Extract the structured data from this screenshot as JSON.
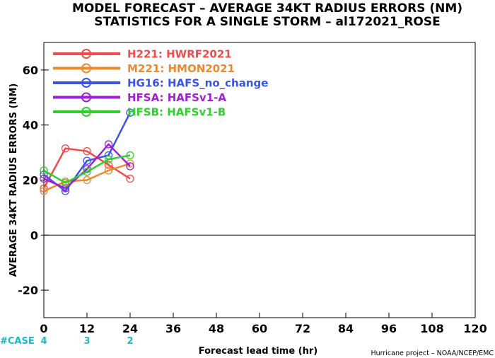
{
  "chart_data": {
    "type": "line",
    "title": "MODEL FORECAST – AVERAGE 34KT RADIUS ERRORS (NM)",
    "subtitle": "STATISTICS FOR A SINGLE STORM – al172021_ROSE",
    "xlabel": "Forecast lead time (hr)",
    "ylabel": "AVERAGE 34KT RADIUS ERRORS (NM)",
    "xlim": [
      0,
      120
    ],
    "ylim": [
      -30,
      70
    ],
    "xticks": [
      0,
      12,
      24,
      36,
      48,
      60,
      72,
      84,
      96,
      108,
      120
    ],
    "yticks": [
      -20,
      0,
      20,
      40,
      60
    ],
    "x": [
      0,
      6,
      12,
      18,
      24
    ],
    "legend_position": "top-left",
    "series": [
      {
        "name": "H221: HWRF2021",
        "color": "#f04a4a",
        "values": [
          17,
          31.5,
          30.5,
          25.5,
          20.5
        ]
      },
      {
        "name": "M221: HMON2021",
        "color": "#f0882a",
        "values": [
          16,
          19.5,
          20,
          23.5,
          26
        ]
      },
      {
        "name": "HG16: HAFS_no_change",
        "color": "#3a55e6",
        "values": [
          22,
          16,
          27,
          29,
          44.5
        ]
      },
      {
        "name": "HFSA: HAFSv1-A",
        "color": "#a022cf",
        "values": [
          20.5,
          17,
          24,
          33,
          25
        ]
      },
      {
        "name": "HFSB: HAFSv1-B",
        "color": "#2ed02a",
        "values": [
          23.5,
          19,
          23,
          27.5,
          29
        ]
      }
    ],
    "cases": {
      "label": "#CASE",
      "color": "#18b8c8",
      "x": [
        0,
        12,
        24
      ],
      "counts": [
        "4",
        "3",
        "2"
      ]
    },
    "credit": "Hurricane project – NOAA/NCEP/EMC"
  }
}
